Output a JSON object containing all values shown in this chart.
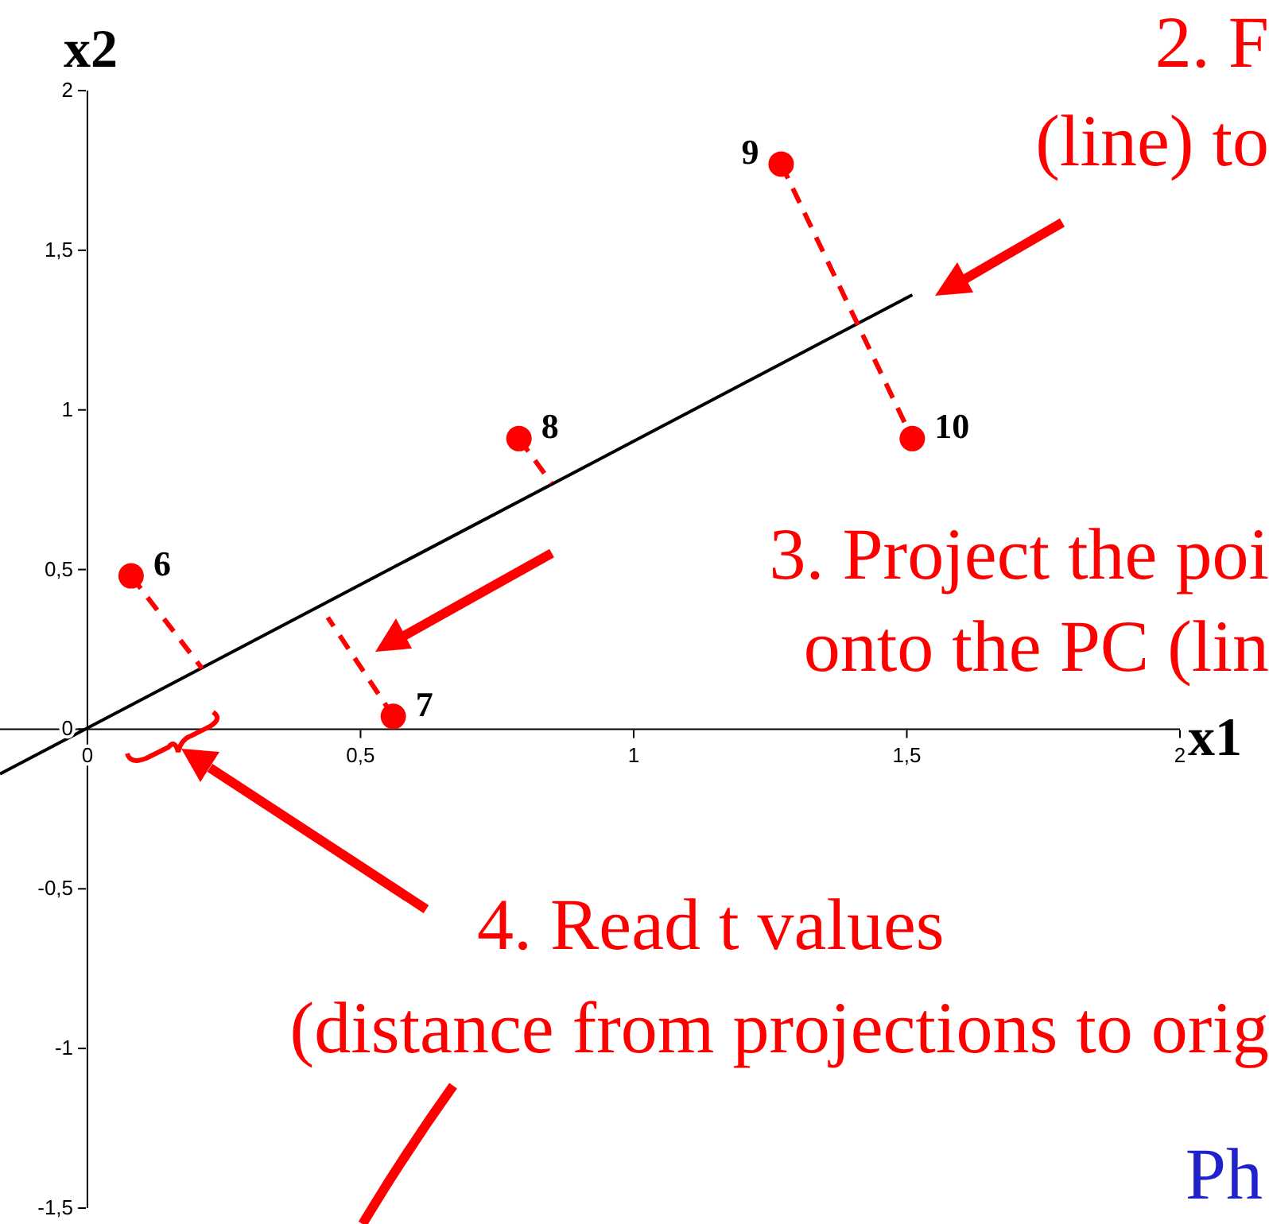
{
  "chart_data": {
    "type": "scatter",
    "xlabel": "x1",
    "ylabel": "x2",
    "xlim": [
      -0.16,
      2
    ],
    "ylim": [
      -1.5,
      2
    ],
    "xticks": [
      0,
      {
        "value": 0.5,
        "label": "0,5"
      },
      1,
      {
        "value": 1.5,
        "label": "1,5"
      },
      2
    ],
    "yticks": [
      {
        "value": -1.5,
        "label": "-1,5"
      },
      -1,
      {
        "value": -0.5,
        "label": "-0,5"
      },
      0,
      {
        "value": 0.5,
        "label": "0,5"
      },
      1,
      {
        "value": 1.5,
        "label": "1,5"
      },
      2
    ],
    "grid": false,
    "series": [
      {
        "type": "line",
        "marker": "none",
        "color": "#000000",
        "line_style": "solid",
        "x": [
          -0.16,
          1.51
        ],
        "values": [
          -0.14,
          1.36
        ]
      },
      {
        "type": "line",
        "marker": "none",
        "color": "#ff0000",
        "line_style": "dashed",
        "x": [
          0.08,
          0.21
        ],
        "values": [
          0.48,
          0.19
        ]
      },
      {
        "type": "line",
        "marker": "none",
        "color": "#ff0000",
        "line_style": "dashed",
        "x": [
          0.56,
          0.44
        ],
        "values": [
          0.04,
          0.35
        ]
      },
      {
        "type": "line",
        "marker": "none",
        "color": "#ff0000",
        "line_style": "dashed",
        "x": [
          0.79,
          0.85
        ],
        "values": [
          0.91,
          0.77
        ]
      },
      {
        "type": "line",
        "marker": "none",
        "color": "#ff0000",
        "line_style": "dashed",
        "x": [
          1.27,
          1.51
        ],
        "values": [
          1.77,
          0.91
        ]
      },
      {
        "marker": "circle",
        "color": "#ff0000",
        "x": [
          0.08,
          0.56,
          0.79,
          1.27,
          1.51
        ],
        "values": [
          0.48,
          0.04,
          0.91,
          1.77,
          0.91
        ]
      }
    ],
    "annotations": [
      {
        "text": "6",
        "x": 0.08,
        "y": 0.48
      },
      {
        "text": "7",
        "x": 0.56,
        "y": 0.04
      },
      {
        "text": "8",
        "x": 0.79,
        "y": 0.91
      },
      {
        "text": "9",
        "x": 1.27,
        "y": 1.77
      },
      {
        "text": "10",
        "x": 1.51,
        "y": 0.91
      },
      "2. F",
      "(line) to",
      "3. Project the poi",
      "onto the PC (lin",
      "4. Read t values",
      "(distance from projections to orig",
      "Ph"
    ]
  }
}
